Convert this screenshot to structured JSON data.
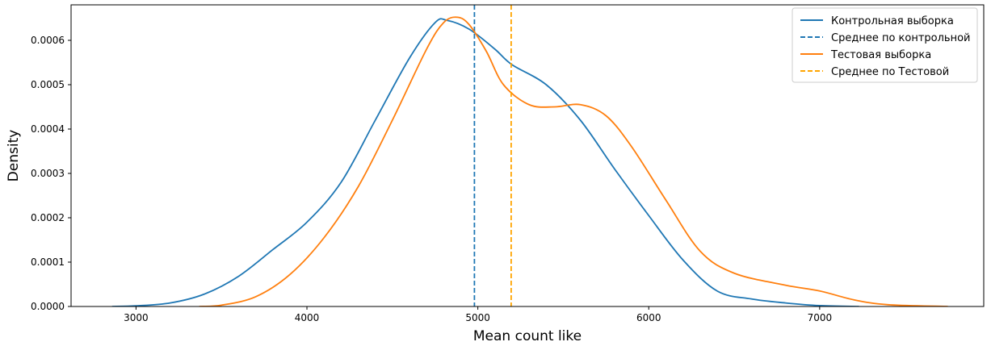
{
  "chart_data": {
    "type": "line",
    "title": "",
    "xlabel": "Mean count like",
    "ylabel": "Density",
    "xlim": [
      2620,
      7960
    ],
    "ylim": [
      0,
      0.00068
    ],
    "x_ticks": [
      3000,
      4000,
      5000,
      6000,
      7000
    ],
    "x_tick_labels": [
      "3000",
      "4000",
      "5000",
      "6000",
      "7000"
    ],
    "y_ticks": [
      0,
      0.0001,
      0.0002,
      0.0003,
      0.0004,
      0.0005,
      0.0006
    ],
    "y_tick_labels": [
      "0.0000",
      "0.0001",
      "0.0002",
      "0.0003",
      "0.0004",
      "0.0005",
      "0.0006"
    ],
    "grid": false,
    "legend_position": "top-right",
    "series": [
      {
        "name": "Контрольная выборка",
        "style": "solid",
        "color": "#1f77b4",
        "points": [
          [
            2860,
            0.0
          ],
          [
            3000,
            1.5e-06
          ],
          [
            3200,
            8e-06
          ],
          [
            3400,
            2.8e-05
          ],
          [
            3600,
            6.8e-05
          ],
          [
            3800,
            0.000128
          ],
          [
            4000,
            0.00019
          ],
          [
            4200,
            0.00028
          ],
          [
            4400,
            0.00042
          ],
          [
            4600,
            0.00056
          ],
          [
            4750,
            0.00064
          ],
          [
            4820,
            0.000645
          ],
          [
            4950,
            0.000625
          ],
          [
            5100,
            0.00058
          ],
          [
            5200,
            0.000545
          ],
          [
            5400,
            0.0005
          ],
          [
            5600,
            0.00042
          ],
          [
            5800,
            0.00031
          ],
          [
            6000,
            0.000205
          ],
          [
            6200,
            0.000105
          ],
          [
            6400,
            3.5e-05
          ],
          [
            6600,
            1.7e-05
          ],
          [
            6800,
            8e-06
          ],
          [
            7000,
            2e-06
          ],
          [
            7230,
            0.0
          ]
        ]
      },
      {
        "name": "Среднее по контрольной",
        "style": "dashed",
        "color": "#1f77b4",
        "vline_x": 4980
      },
      {
        "name": "Тестовая выборка",
        "style": "solid",
        "color": "#ff7f0e",
        "points": [
          [
            3370,
            0.0
          ],
          [
            3500,
            3e-06
          ],
          [
            3700,
            2.2e-05
          ],
          [
            3900,
            7.2e-05
          ],
          [
            4100,
            0.000155
          ],
          [
            4300,
            0.00027
          ],
          [
            4500,
            0.00042
          ],
          [
            4700,
            0.00058
          ],
          [
            4800,
            0.00064
          ],
          [
            4880,
            0.000652
          ],
          [
            4950,
            0.000635
          ],
          [
            5050,
            0.000575
          ],
          [
            5150,
            0.0005
          ],
          [
            5300,
            0.000455
          ],
          [
            5450,
            0.00045
          ],
          [
            5600,
            0.000455
          ],
          [
            5750,
            0.00043
          ],
          [
            5900,
            0.00036
          ],
          [
            6100,
            0.00024
          ],
          [
            6300,
            0.000125
          ],
          [
            6500,
            7.5e-05
          ],
          [
            6800,
            4.8e-05
          ],
          [
            7000,
            3.5e-05
          ],
          [
            7200,
            1.5e-05
          ],
          [
            7400,
            4e-06
          ],
          [
            7750,
            0.0
          ]
        ]
      },
      {
        "name": "Среднее по Тестовой",
        "style": "dashed",
        "color": "#ffa500",
        "vline_x": 5195
      }
    ]
  }
}
